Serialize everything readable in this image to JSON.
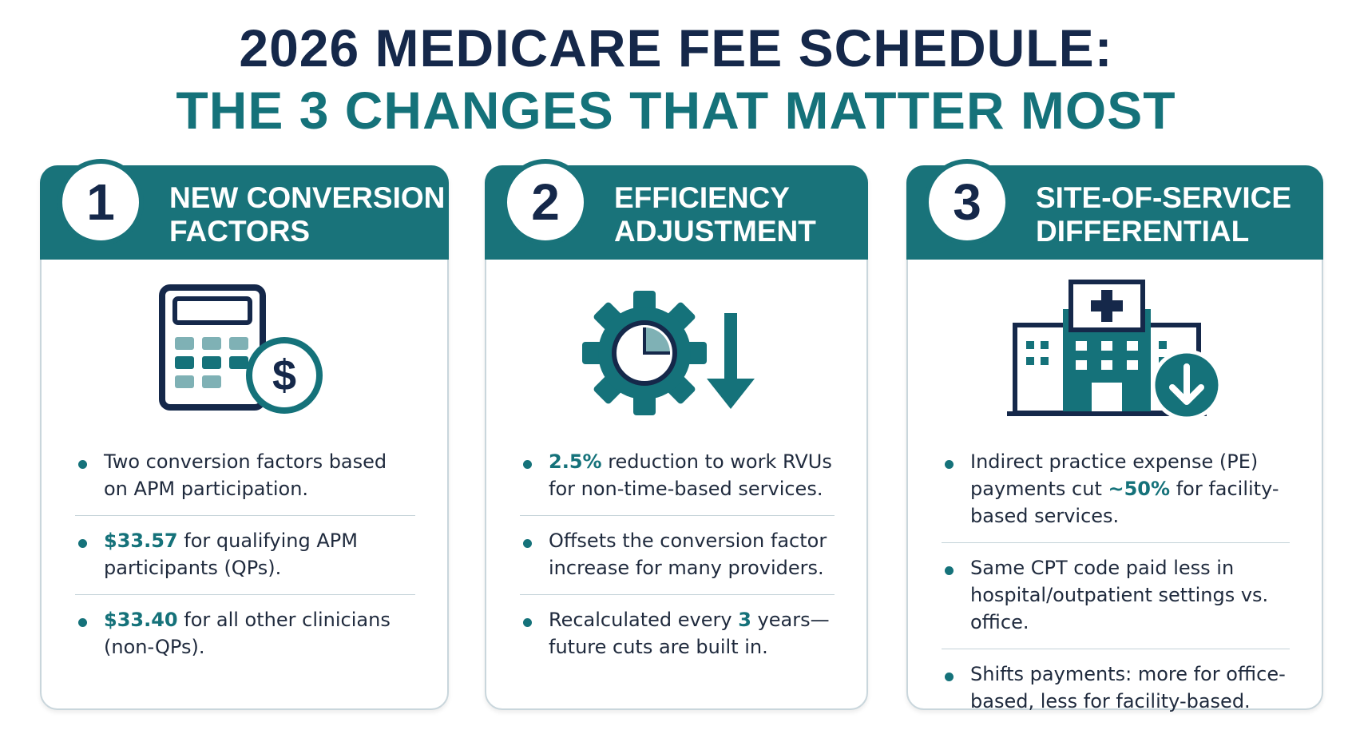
{
  "title": {
    "line1": "2026 MEDICARE FEE SCHEDULE:",
    "line2": "THE 3 CHANGES THAT MATTER MOST"
  },
  "cards": [
    {
      "number": "1",
      "heading": [
        "NEW CONVERSION",
        "FACTORS"
      ],
      "bullets": [
        {
          "parts": [
            "Two conversion factors based on APM participation."
          ]
        },
        {
          "parts": [
            {
              "strong": "$33.57"
            },
            " for qualifying APM participants (QPs)."
          ]
        },
        {
          "parts": [
            {
              "strong": "$33.40"
            },
            " for all other clinicians (non-QPs)."
          ]
        }
      ]
    },
    {
      "number": "2",
      "heading": [
        "EFFICIENCY",
        "ADJUSTMENT"
      ],
      "bullets": [
        {
          "parts": [
            {
              "strong": "2.5%"
            },
            " reduction to work RVUs for non-time-based services."
          ]
        },
        {
          "parts": [
            "Offsets the conversion factor increase for many providers."
          ]
        },
        {
          "parts": [
            "Recalculated every ",
            {
              "strong": "3"
            },
            " years—future cuts are built in."
          ]
        }
      ]
    },
    {
      "number": "3",
      "heading": [
        "SITE-OF-SERVICE",
        "DIFFERENTIAL"
      ],
      "bullets": [
        {
          "parts": [
            "Indirect practice expense (PE) payments cut ",
            {
              "strong": "~50%"
            },
            " for facility-based services."
          ]
        },
        {
          "parts": [
            "Same CPT code paid less in hospital/outpatient settings vs. office."
          ]
        },
        {
          "parts": [
            "Shifts payments: more for office-based, less for facility-based."
          ]
        }
      ]
    }
  ]
}
